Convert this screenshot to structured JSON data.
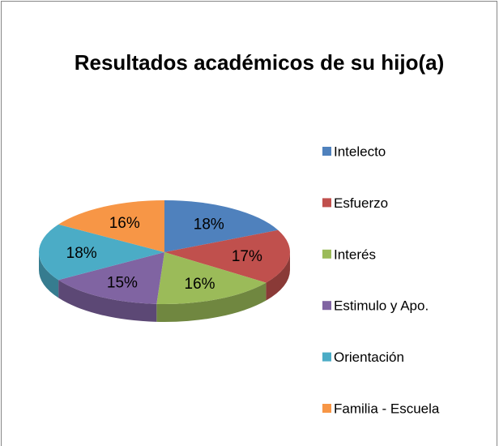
{
  "chart_data": {
    "type": "pie3d",
    "title": "Resultados académicos de su hijo(a)",
    "categories": [
      "Intelecto",
      "Esfuerzo",
      "Interés",
      "Estimulo y Apo.",
      "Orientación",
      "Familia - Escuela"
    ],
    "values": [
      18,
      17,
      16,
      15,
      18,
      16
    ],
    "value_labels": [
      "18%",
      "17%",
      "16%",
      "15%",
      "18%",
      "16%"
    ],
    "colors": [
      "#4F81BD",
      "#C0504D",
      "#9BBB59",
      "#8064A2",
      "#4BACC6",
      "#F79646"
    ],
    "legend": "right"
  }
}
